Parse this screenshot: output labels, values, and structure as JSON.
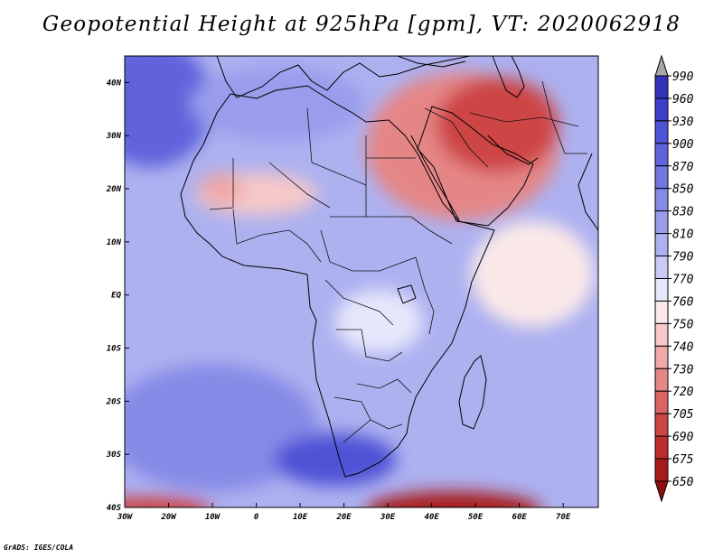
{
  "map": {
    "title": "Geopotential Height at 925hPa [gpm], VT: 2020062918",
    "variable": "Geopotential Height",
    "level": "925hPa",
    "units": "gpm",
    "valid_time": "2020062918",
    "region": "Africa and Middle East",
    "extent": {
      "lon_min": -30,
      "lon_max": 78,
      "lat_min": -40,
      "lat_max": 45
    },
    "lat_ticks": [
      {
        "value": 40,
        "label": "40N"
      },
      {
        "value": 30,
        "label": "30N"
      },
      {
        "value": 20,
        "label": "20N"
      },
      {
        "value": 10,
        "label": "10N"
      },
      {
        "value": 0,
        "label": "EQ"
      },
      {
        "value": -10,
        "label": "10S"
      },
      {
        "value": -20,
        "label": "20S"
      },
      {
        "value": -30,
        "label": "30S"
      },
      {
        "value": -40,
        "label": "40S"
      }
    ],
    "lon_ticks": [
      {
        "value": -30,
        "label": "30W"
      },
      {
        "value": -20,
        "label": "20W"
      },
      {
        "value": -10,
        "label": "10W"
      },
      {
        "value": 0,
        "label": "0"
      },
      {
        "value": 10,
        "label": "10E"
      },
      {
        "value": 20,
        "label": "20E"
      },
      {
        "value": 30,
        "label": "30E"
      },
      {
        "value": 40,
        "label": "40E"
      },
      {
        "value": 50,
        "label": "50E"
      },
      {
        "value": 60,
        "label": "60E"
      },
      {
        "value": 70,
        "label": "70E"
      }
    ],
    "background_value": 790,
    "features": [
      {
        "name": "north-atlantic-high",
        "value": 920,
        "lon": -28,
        "lat": 38,
        "rx": 10,
        "ry": 9
      },
      {
        "name": "north-atlantic-ridge",
        "value": 880,
        "lon": -24,
        "lat": 36,
        "rx": 14,
        "ry": 12
      },
      {
        "name": "mediterranean-ridge",
        "value": 810,
        "lon": 5,
        "lat": 36,
        "rx": 20,
        "ry": 7
      },
      {
        "name": "sahara-heat-low",
        "value": 745,
        "lon": 0,
        "lat": 19,
        "rx": 14,
        "ry": 4
      },
      {
        "name": "west-sahara-low",
        "value": 735,
        "lon": -8,
        "lat": 20,
        "rx": 5,
        "ry": 3
      },
      {
        "name": "arabian-heat-low",
        "value": 720,
        "lon": 47,
        "lat": 28,
        "rx": 22,
        "ry": 14
      },
      {
        "name": "persian-heat-low",
        "value": 700,
        "lon": 55,
        "lat": 32,
        "rx": 14,
        "ry": 9
      },
      {
        "name": "horn-low",
        "value": 755,
        "lon": 63,
        "lat": 4,
        "rx": 14,
        "ry": 10
      },
      {
        "name": "central-africa-plateau",
        "value": 760,
        "lon": 28,
        "lat": -5,
        "rx": 10,
        "ry": 6
      },
      {
        "name": "south-atlantic-high",
        "value": 830,
        "lon": -10,
        "lat": -25,
        "rx": 24,
        "ry": 12
      },
      {
        "name": "southern-africa-high",
        "value": 900,
        "lon": 18,
        "lat": -31,
        "rx": 14,
        "ry": 5
      },
      {
        "name": "south-atlantic-low",
        "value": 690,
        "lon": -24,
        "lat": -40.5,
        "rx": 14,
        "ry": 2.5
      },
      {
        "name": "southern-ocean-low",
        "value": 670,
        "lon": 45,
        "lat": -40.5,
        "rx": 20,
        "ry": 3.5
      }
    ]
  },
  "colorbar": {
    "levels": [
      "990",
      "960",
      "930",
      "900",
      "870",
      "850",
      "830",
      "810",
      "790",
      "770",
      "760",
      "750",
      "740",
      "730",
      "720",
      "705",
      "690",
      "675",
      "650"
    ],
    "colors": [
      "#2d0ea3",
      "#3333b8",
      "#3d3fcc",
      "#4f53d6",
      "#6064dc",
      "#7277e0",
      "#868ae6",
      "#999dec",
      "#adb1f0",
      "#c9cbf5",
      "#e6e7fb",
      "#fbe9e9",
      "#f6c8c8",
      "#f0a8a8",
      "#e58686",
      "#da6464",
      "#cd4545",
      "#bd2d2d",
      "#a81a1a",
      "#8e1010"
    ]
  },
  "credit": "GrADS: IGES/COLA"
}
